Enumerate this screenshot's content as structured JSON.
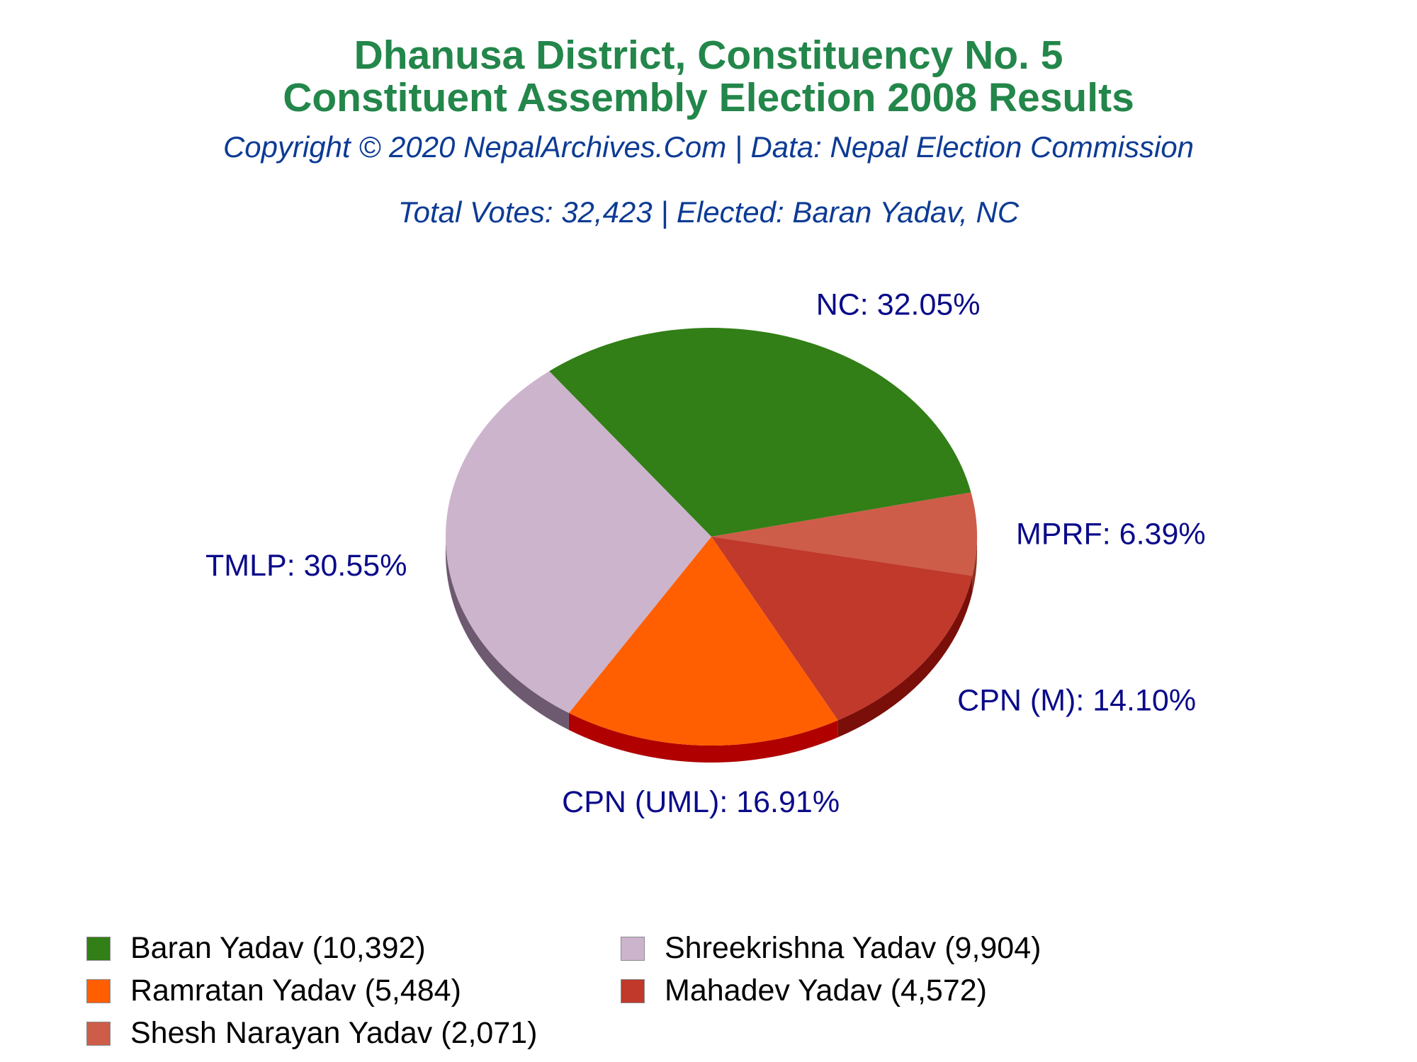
{
  "header": {
    "title_line1": "Dhanusa District, Constituency No. 5",
    "title_line2": "Constituent Assembly Election 2008 Results",
    "subtitle": "Copyright © 2020 NepalArchives.Com | Data: Nepal Election Commission",
    "summary": "Total Votes: 32,423 | Elected: Baran Yadav, NC"
  },
  "chart_data": {
    "type": "pie",
    "slices": [
      {
        "party": "NC",
        "percent": 32.05,
        "label": "NC: 32.05%",
        "candidate": "Baran Yadav (10,392)",
        "votes": 10392,
        "color": "#317f16",
        "side": "#1e5a0c"
      },
      {
        "party": "MPRF",
        "percent": 6.39,
        "label": "MPRF: 6.39%",
        "candidate": "Shesh Narayan Yadav (2,071)",
        "votes": 2071,
        "color": "#cd5c48",
        "side": "#8e3323"
      },
      {
        "party": "CPN (M)",
        "percent": 14.1,
        "label": "CPN (M): 14.10%",
        "candidate": "Mahadev Yadav (4,572)",
        "votes": 4572,
        "color": "#c0392b",
        "side": "#7a0f0a"
      },
      {
        "party": "CPN (UML)",
        "percent": 16.91,
        "label": "CPN (UML): 16.91%",
        "candidate": "Ramratan Yadav (5,484)",
        "votes": 5484,
        "color": "#ff5f00",
        "side": "#b00000"
      },
      {
        "party": "TMLP",
        "percent": 30.55,
        "label": "TMLP: 30.55%",
        "candidate": "Shreekrishna Yadav (9,904)",
        "votes": 9904,
        "color": "#cdb4cd",
        "side": "#6e5a70"
      }
    ],
    "legend": [
      {
        "text": "Baran Yadav (10,392)",
        "color": "#317f16"
      },
      {
        "text": "Shreekrishna Yadav (9,904)",
        "color": "#cdb4cd"
      },
      {
        "text": "Ramratan Yadav (5,484)",
        "color": "#ff5f00"
      },
      {
        "text": "Mahadev Yadav (4,572)",
        "color": "#c0392b"
      },
      {
        "text": "Shesh Narayan Yadav (2,071)",
        "color": "#cd5c48"
      }
    ],
    "legend_placement": "bottom"
  }
}
